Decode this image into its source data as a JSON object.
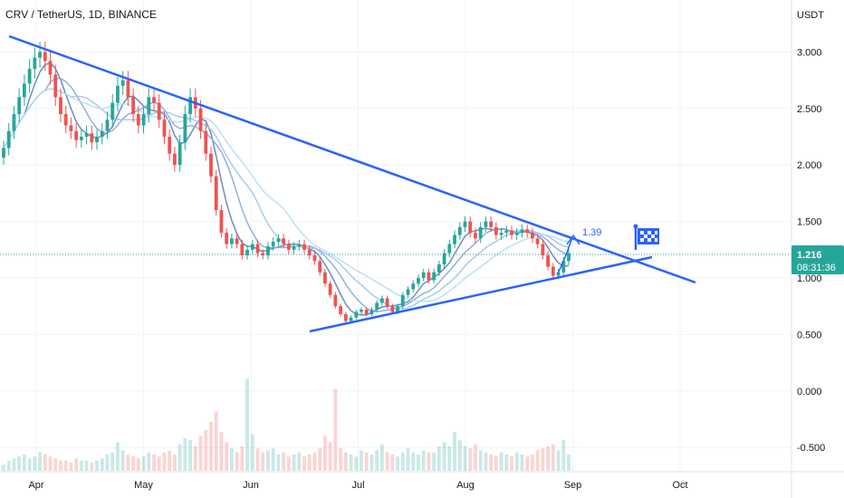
{
  "header": {
    "symbol_title": "CRV / TetherUS, 1D, BINANCE",
    "currency": "USDT"
  },
  "price_badge": {
    "price": "1.216",
    "countdown": "08:31:36",
    "color": "#26a69a"
  },
  "annotation": {
    "target_label": "1.39",
    "flag_icon": "checkered-flag-icon"
  },
  "colors": {
    "up": "#26a69a",
    "down": "#ef5350",
    "trendline": "#2962ff",
    "ma1": "#5b7fbf",
    "ma2": "#8aa6d8",
    "ma3": "#9cc5e8",
    "ma4": "#b7dcf2"
  },
  "chart_data": {
    "type": "candlestick",
    "title": "CRV / TetherUS, 1D, BINANCE",
    "ylabel": "USDT",
    "ylim": [
      -0.75,
      3.25
    ],
    "y_ticks": [
      "3.000",
      "2.500",
      "2.000",
      "1.500",
      "1.000",
      "0.500",
      "0.000",
      "-0.500"
    ],
    "x_ticks": [
      "Apr",
      "May",
      "Jun",
      "Jul",
      "Aug",
      "Sep",
      "Oct"
    ],
    "last_price": 1.216,
    "series_close": [
      2.15,
      2.3,
      2.45,
      2.6,
      2.72,
      2.85,
      2.95,
      3.0,
      2.92,
      2.8,
      2.6,
      2.45,
      2.35,
      2.3,
      2.22,
      2.25,
      2.28,
      2.2,
      2.25,
      2.3,
      2.4,
      2.55,
      2.7,
      2.75,
      2.6,
      2.45,
      2.35,
      2.45,
      2.6,
      2.55,
      2.4,
      2.25,
      2.1,
      2.0,
      2.2,
      2.45,
      2.6,
      2.5,
      2.3,
      2.1,
      1.9,
      1.6,
      1.4,
      1.3,
      1.35,
      1.3,
      1.2,
      1.25,
      1.3,
      1.22,
      1.2,
      1.28,
      1.32,
      1.35,
      1.3,
      1.25,
      1.28,
      1.3,
      1.25,
      1.2,
      1.15,
      1.05,
      0.95,
      0.85,
      0.75,
      0.68,
      0.62,
      0.65,
      0.7,
      0.72,
      0.68,
      0.72,
      0.78,
      0.82,
      0.75,
      0.7,
      0.75,
      0.85,
      0.9,
      0.95,
      1.0,
      1.05,
      0.98,
      1.05,
      1.12,
      1.22,
      1.3,
      1.38,
      1.45,
      1.5,
      1.4,
      1.35,
      1.45,
      1.5,
      1.45,
      1.38,
      1.4,
      1.42,
      1.38,
      1.4,
      1.43,
      1.4,
      1.35,
      1.3,
      1.2,
      1.1,
      1.02,
      1.05,
      1.15,
      1.22
    ],
    "volume": [
      0.03,
      0.05,
      0.06,
      0.07,
      0.08,
      0.06,
      0.07,
      0.09,
      0.08,
      0.07,
      0.06,
      0.05,
      0.05,
      0.04,
      0.06,
      0.05,
      0.05,
      0.04,
      0.05,
      0.06,
      0.08,
      0.09,
      0.14,
      0.1,
      0.08,
      0.07,
      0.06,
      0.07,
      0.09,
      0.08,
      0.07,
      0.09,
      0.1,
      0.08,
      0.13,
      0.16,
      0.15,
      0.12,
      0.17,
      0.2,
      0.24,
      0.29,
      0.19,
      0.14,
      0.11,
      0.09,
      0.12,
      0.45,
      0.18,
      0.11,
      0.09,
      0.1,
      0.11,
      0.08,
      0.09,
      0.07,
      0.08,
      0.09,
      0.07,
      0.08,
      0.09,
      0.11,
      0.17,
      0.14,
      0.4,
      0.11,
      0.09,
      0.08,
      0.07,
      0.1,
      0.09,
      0.08,
      0.1,
      0.13,
      0.09,
      0.08,
      0.07,
      0.09,
      0.11,
      0.09,
      0.08,
      0.1,
      0.09,
      0.09,
      0.12,
      0.14,
      0.12,
      0.19,
      0.15,
      0.12,
      0.11,
      0.13,
      0.1,
      0.09,
      0.08,
      0.07,
      0.09,
      0.08,
      0.07,
      0.09,
      0.08,
      0.07,
      0.08,
      0.1,
      0.11,
      0.12,
      0.13,
      0.1,
      0.15,
      0.08
    ]
  }
}
